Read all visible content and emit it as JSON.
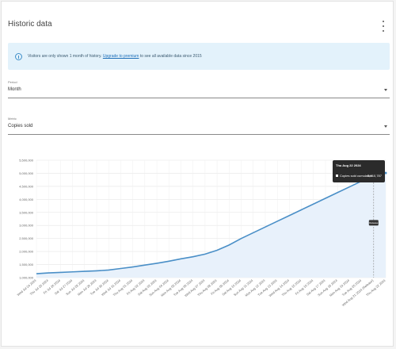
{
  "card": {
    "title": "Historic data"
  },
  "notice": {
    "text_before": "Visitors are only shown 1 month of history.",
    "link_text": "Upgrade to premium",
    "text_after": "to see all available data since 2015"
  },
  "fields": {
    "period": {
      "label": "Period",
      "value": "Month"
    },
    "metric": {
      "label": "Metric",
      "value": "Copies sold"
    }
  },
  "tooltip": {
    "date": "Thu Aug 22 2024",
    "series_label": "Copies sold cumulative",
    "value": "5,010,787",
    "color": "#ffffff"
  },
  "marker": {
    "label": "Release"
  },
  "chart_data": {
    "type": "area",
    "title": "",
    "xlabel": "",
    "ylabel": "",
    "ylim": [
      1000000,
      5500000
    ],
    "yticks": [
      "1,000,000",
      "1,500,000",
      "2,000,000",
      "2,500,000",
      "3,000,000",
      "3,500,000",
      "4,000,000",
      "4,500,000",
      "5,000,000",
      "5,500,000"
    ],
    "ytick_values": [
      1000000,
      1500000,
      2000000,
      2500000,
      3000000,
      3500000,
      4000000,
      4500000,
      5000000,
      5500000
    ],
    "categories": [
      "Wed Jul 24 2024",
      "Thu Jul 25 2024",
      "Fri Jul 26 2024",
      "Sat Jul 27 2024",
      "Sun Jul 28 2024",
      "Mon Jul 29 2024",
      "Tue Jul 30 2024",
      "Wed Jul 31 2024",
      "Thu Aug 01 2024",
      "Fri Aug 02 2024",
      "Sat Aug 03 2024",
      "Sun Aug 04 2024",
      "Mon Aug 05 2024",
      "Tue Aug 06 2024",
      "Wed Aug 07 2024",
      "Thu Aug 08 2024",
      "Fri Aug 09 2024",
      "Sat Aug 10 2024",
      "Sun Aug 11 2024",
      "Mon Aug 12 2024",
      "Tue Aug 13 2024",
      "Wed Aug 14 2024",
      "Thu Aug 15 2024",
      "Fri Aug 16 2024",
      "Sat Aug 17 2024",
      "Sun Aug 18 2024",
      "Mon Aug 19 2024",
      "Tue Aug 20 2024",
      "Wed Aug 21 2024 (Release)",
      "Thu Aug 22 2024"
    ],
    "series": [
      {
        "color": "#4a8fc7",
        "fill": "#e8f1fb",
        "values": [
          1150000,
          1180000,
          1200000,
          1220000,
          1240000,
          1260000,
          1290000,
          1350000,
          1410000,
          1480000,
          1550000,
          1630000,
          1720000,
          1800000,
          1900000,
          2050000,
          2250000,
          2500000,
          2720000,
          2940000,
          3160000,
          3380000,
          3600000,
          3820000,
          4040000,
          4260000,
          4480000,
          4700000,
          4880000,
          5010787
        ]
      }
    ],
    "grid": true,
    "legend": "none",
    "marker_index": 28
  }
}
